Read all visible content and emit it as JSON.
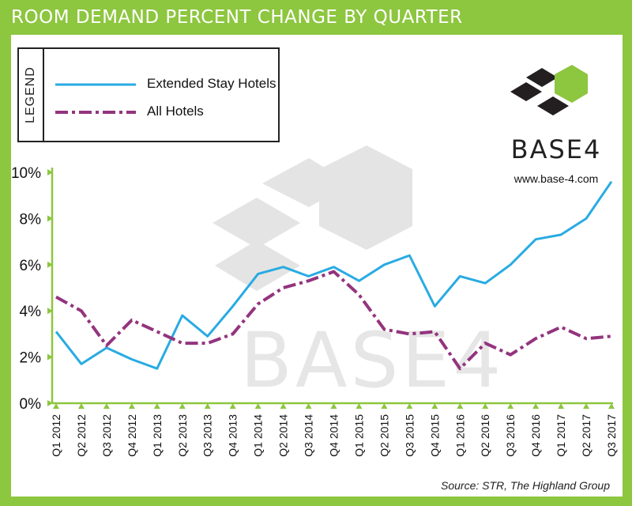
{
  "title": "ROOM DEMAND PERCENT CHANGE BY QUARTER",
  "legend_label": "LEGEND",
  "logo": {
    "word": "BASE4",
    "url": "www.base-4.com",
    "watermark": "BASE4"
  },
  "source": "Source: STR, The Highland Group",
  "colors": {
    "background": "#8dc63f",
    "extended": "#29abe2",
    "all": "#93347e",
    "accent": "#8dc63f"
  },
  "chart_data": {
    "type": "line",
    "categories": [
      "Q1 2012",
      "Q2 2012",
      "Q3 2012",
      "Q4 2012",
      "Q1 2013",
      "Q2 2013",
      "Q3 2013",
      "Q4 2013",
      "Q1 2014",
      "Q2 2014",
      "Q3 2014",
      "Q4 2014",
      "Q1 2015",
      "Q2 2015",
      "Q3 2015",
      "Q4 2015",
      "Q1 2016",
      "Q2 2016",
      "Q3 2016",
      "Q4 2016",
      "Q1 2017",
      "Q2 2017",
      "Q3 2017"
    ],
    "series": [
      {
        "name": "Extended Stay Hotels",
        "style": "solid",
        "values": [
          3.1,
          1.7,
          2.4,
          1.9,
          1.5,
          3.8,
          2.9,
          4.2,
          5.6,
          5.9,
          5.5,
          5.9,
          5.3,
          6.0,
          6.4,
          4.2,
          5.5,
          5.2,
          6.0,
          7.1,
          7.3,
          8.0,
          9.6
        ]
      },
      {
        "name": "All Hotels",
        "style": "dash-dot",
        "values": [
          4.6,
          4.0,
          2.5,
          3.6,
          3.1,
          2.6,
          2.6,
          3.0,
          4.3,
          5.0,
          5.3,
          5.7,
          4.7,
          3.2,
          3.0,
          3.1,
          1.5,
          2.6,
          2.1,
          2.8,
          3.3,
          2.8,
          2.9
        ]
      }
    ],
    "yticks": [
      "0%",
      "2%",
      "4%",
      "6%",
      "8%",
      "10%"
    ],
    "ylim": [
      0,
      10
    ],
    "grid": false
  }
}
